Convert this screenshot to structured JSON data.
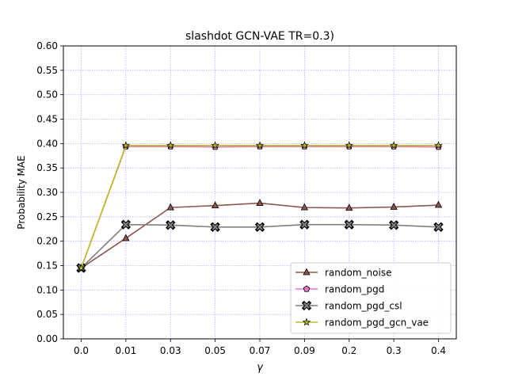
{
  "chart_data": {
    "type": "line",
    "title": "slashdot GCN-VAE TR=0.3)",
    "xlabel": "γ",
    "ylabel": "Probability MAE",
    "categories": [
      "0.0",
      "0.01",
      "0.03",
      "0.05",
      "0.07",
      "0.09",
      "0.2",
      "0.3",
      "0.4"
    ],
    "ylim": [
      0.0,
      0.6
    ],
    "yticks": [
      "0.00",
      "0.05",
      "0.10",
      "0.15",
      "0.20",
      "0.25",
      "0.30",
      "0.35",
      "0.40",
      "0.45",
      "0.50",
      "0.55",
      "0.60"
    ],
    "grid": true,
    "legend_position": "lower-right",
    "series": [
      {
        "name": "random_noise",
        "color": "#8c564b",
        "marker": "triangle",
        "values": [
          0.145,
          0.206,
          0.269,
          0.273,
          0.278,
          0.269,
          0.268,
          0.27,
          0.274
        ]
      },
      {
        "name": "random_pgd",
        "color": "#e377c2",
        "marker": "pentagon",
        "values": [
          0.145,
          0.394,
          0.394,
          0.393,
          0.394,
          0.394,
          0.394,
          0.394,
          0.393
        ]
      },
      {
        "name": "random_pgd_csl",
        "color": "#7f7f7f",
        "marker": "x",
        "values": [
          0.145,
          0.234,
          0.233,
          0.229,
          0.229,
          0.234,
          0.234,
          0.233,
          0.229
        ]
      },
      {
        "name": "random_pgd_gcn_vae",
        "color": "#bcbd22",
        "marker": "star",
        "values": [
          0.145,
          0.396,
          0.396,
          0.396,
          0.396,
          0.396,
          0.396,
          0.396,
          0.396
        ]
      }
    ]
  }
}
